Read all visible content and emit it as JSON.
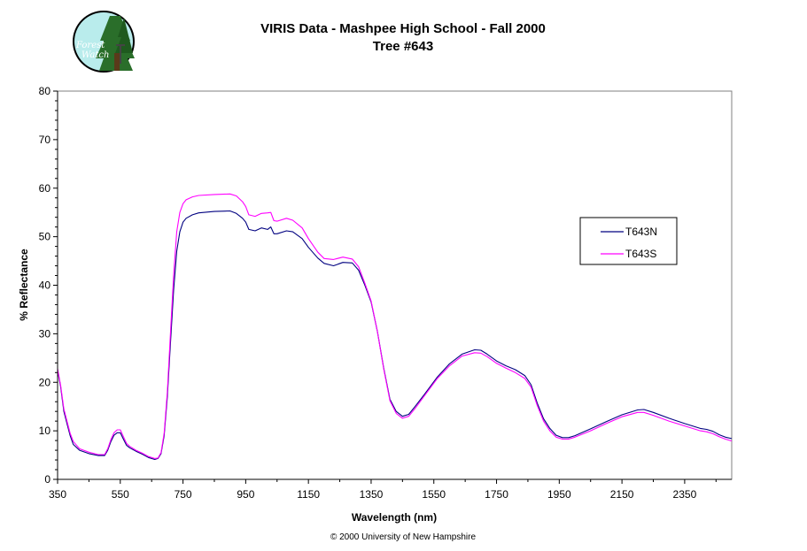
{
  "chart_data": {
    "type": "line",
    "title": "VIRIS Data - Mashpee High School - Fall 2000",
    "subtitle": "Tree #643",
    "xlabel": "Wavelength (nm)",
    "ylabel": "% Reflectance",
    "xlim": [
      350,
      2500
    ],
    "ylim": [
      0,
      80
    ],
    "xticks": [
      350,
      550,
      750,
      950,
      1150,
      1350,
      1550,
      1750,
      1950,
      2150,
      2350
    ],
    "yticks": [
      0,
      10,
      20,
      30,
      40,
      50,
      60,
      70,
      80
    ],
    "grid": false,
    "legend_position": "right",
    "series": [
      {
        "name": "T643N",
        "color": "#000080",
        "x": [
          350,
          360,
          370,
          380,
          390,
          400,
          420,
          450,
          480,
          500,
          510,
          520,
          530,
          540,
          550,
          560,
          570,
          580,
          600,
          620,
          640,
          660,
          670,
          680,
          690,
          700,
          710,
          720,
          730,
          740,
          750,
          760,
          780,
          800,
          850,
          900,
          920,
          940,
          950,
          960,
          980,
          1000,
          1020,
          1030,
          1040,
          1050,
          1080,
          1100,
          1130,
          1150,
          1180,
          1200,
          1230,
          1260,
          1290,
          1310,
          1330,
          1350,
          1370,
          1390,
          1410,
          1430,
          1450,
          1470,
          1490,
          1520,
          1560,
          1600,
          1640,
          1680,
          1700,
          1720,
          1750,
          1780,
          1810,
          1840,
          1860,
          1880,
          1900,
          1920,
          1940,
          1960,
          1980,
          2000,
          2050,
          2100,
          2150,
          2200,
          2220,
          2250,
          2300,
          2350,
          2400,
          2420,
          2440,
          2460,
          2480,
          2500
        ],
        "y": [
          22.5,
          19,
          14,
          11.5,
          9,
          7.2,
          6,
          5.3,
          4.9,
          4.9,
          6,
          7.8,
          9.1,
          9.6,
          9.6,
          8.3,
          7,
          6.5,
          5.8,
          5.2,
          4.5,
          4.1,
          4.3,
          5.3,
          9,
          17,
          28,
          39,
          47,
          51,
          53,
          53.8,
          54.5,
          54.9,
          55.2,
          55.3,
          54.8,
          53.8,
          53,
          51.5,
          51.2,
          51.8,
          51.5,
          52,
          50.6,
          50.6,
          51.2,
          51,
          49.6,
          47.8,
          45.6,
          44.5,
          44,
          44.7,
          44.6,
          43.1,
          40,
          36.5,
          30.5,
          23,
          16.5,
          14,
          13,
          13.4,
          15,
          17.5,
          21,
          23.8,
          25.8,
          26.7,
          26.6,
          25.8,
          24.4,
          23.4,
          22.6,
          21.4,
          19.5,
          15.7,
          12.5,
          10.5,
          9.1,
          8.6,
          8.6,
          9,
          10.4,
          11.9,
          13.3,
          14.3,
          14.4,
          13.8,
          12.6,
          11.5,
          10.5,
          10.3,
          9.9,
          9.2,
          8.7,
          8.4
        ]
      },
      {
        "name": "T643S",
        "color": "#ff00ff",
        "x": [
          350,
          360,
          370,
          380,
          390,
          400,
          420,
          450,
          480,
          500,
          510,
          520,
          530,
          540,
          550,
          560,
          570,
          580,
          600,
          620,
          640,
          660,
          670,
          680,
          690,
          700,
          710,
          720,
          730,
          740,
          750,
          760,
          780,
          800,
          850,
          900,
          920,
          940,
          950,
          960,
          980,
          1000,
          1020,
          1030,
          1040,
          1050,
          1080,
          1100,
          1130,
          1150,
          1180,
          1200,
          1230,
          1260,
          1290,
          1310,
          1330,
          1350,
          1370,
          1390,
          1410,
          1430,
          1450,
          1470,
          1490,
          1520,
          1560,
          1600,
          1640,
          1680,
          1700,
          1720,
          1750,
          1780,
          1810,
          1840,
          1860,
          1880,
          1900,
          1920,
          1940,
          1960,
          1980,
          2000,
          2050,
          2100,
          2150,
          2200,
          2220,
          2250,
          2300,
          2350,
          2400,
          2420,
          2440,
          2460,
          2480,
          2500
        ],
        "y": [
          22.8,
          19.3,
          14.5,
          12,
          9.5,
          7.8,
          6.3,
          5.6,
          5.1,
          5.1,
          6.3,
          8.2,
          9.6,
          10.2,
          10.2,
          8.8,
          7.4,
          6.8,
          6,
          5.4,
          4.7,
          4.3,
          4.4,
          5.5,
          9.5,
          18,
          30,
          42,
          51,
          55,
          56.8,
          57.6,
          58.2,
          58.5,
          58.7,
          58.8,
          58.4,
          57.2,
          56.2,
          54.5,
          54.2,
          54.8,
          54.9,
          55,
          53.3,
          53.2,
          53.8,
          53.4,
          51.8,
          49.6,
          46.8,
          45.5,
          45.3,
          45.8,
          45.4,
          43.8,
          40.4,
          36.7,
          30.5,
          22.8,
          16.2,
          13.6,
          12.6,
          13,
          14.6,
          17.2,
          20.7,
          23.4,
          25.4,
          26.1,
          26,
          25.3,
          23.9,
          22.9,
          22,
          20.8,
          19,
          15.2,
          12,
          10,
          8.7,
          8.3,
          8.3,
          8.7,
          10,
          11.5,
          12.9,
          13.8,
          13.8,
          13.2,
          12,
          11,
          10,
          9.8,
          9.4,
          8.8,
          8.3,
          7.9
        ]
      }
    ],
    "footer": "© 2000 University of New Hampshire"
  },
  "logo": {
    "line1": "Forest",
    "line2": "Watch"
  }
}
